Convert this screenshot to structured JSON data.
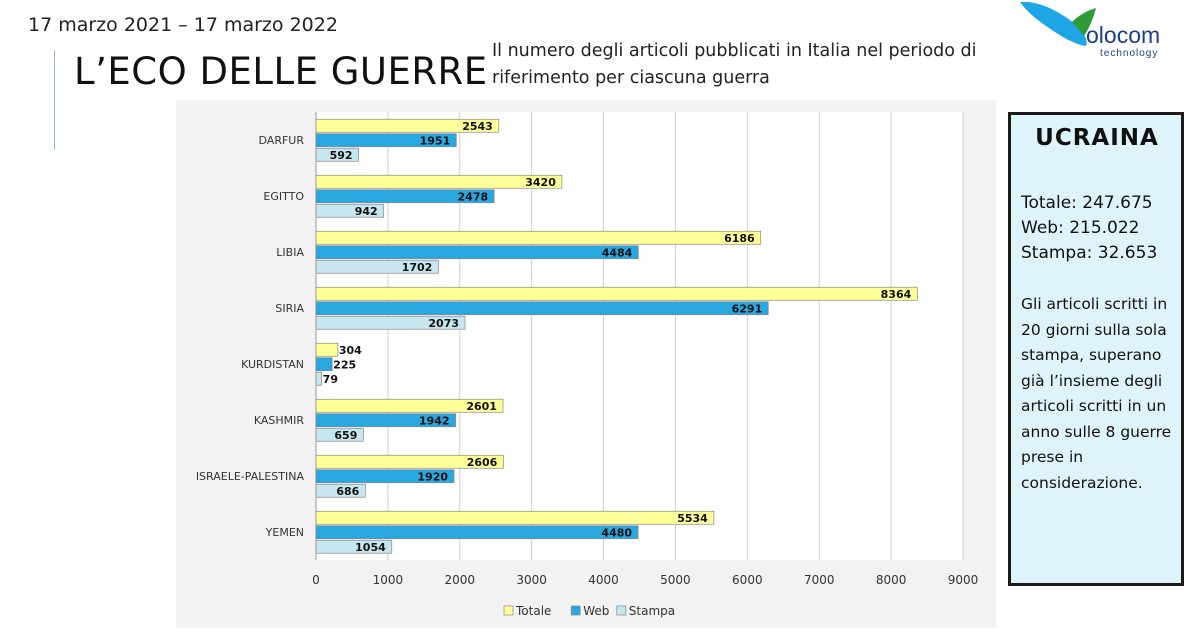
{
  "header": {
    "date_range": "17 marzo 2021 – 17 marzo 2022",
    "title": "L’ECO DELLE GUERRE",
    "subtitle": "Il numero degli articoli pubblicati in Italia nel periodo di riferimento per ciascuna guerra"
  },
  "logo": {
    "word": "olocom",
    "sub": "technology"
  },
  "side_box": {
    "title": "UCRAINA",
    "totale": "Totale: 247.675",
    "web": "Web: 215.022",
    "stampa": "Stampa: 32.653",
    "note": "Gli articoli scritti in 20 giorni sulla sola stampa, superano già l’insieme degli articoli scritti in un anno sulle 8 guerre prese in considerazione."
  },
  "colors": {
    "totale": "#ffff99",
    "web": "#29a8e0",
    "stampa": "#c7e6ee",
    "grid": "#d0d0d0",
    "plot_bg": "#ffffff"
  },
  "chart_data": {
    "type": "bar",
    "orientation": "horizontal",
    "categories": [
      "DARFUR",
      "EGITTO",
      "LIBIA",
      "SIRIA",
      "KURDISTAN",
      "KASHMIR",
      "ISRAELE-PALESTINA",
      "YEMEN"
    ],
    "series": [
      {
        "name": "Totale",
        "values": [
          2543,
          3420,
          6186,
          8364,
          304,
          2601,
          2606,
          5534
        ]
      },
      {
        "name": "Web",
        "values": [
          1951,
          2478,
          4484,
          6291,
          225,
          1942,
          1920,
          4480
        ]
      },
      {
        "name": "Stampa",
        "values": [
          592,
          942,
          1702,
          2073,
          79,
          659,
          686,
          1054
        ]
      }
    ],
    "xlim": [
      0,
      9000
    ],
    "xticks": [
      0,
      1000,
      2000,
      3000,
      4000,
      5000,
      6000,
      7000,
      8000,
      9000
    ],
    "grid": true,
    "legend_position": "bottom"
  }
}
